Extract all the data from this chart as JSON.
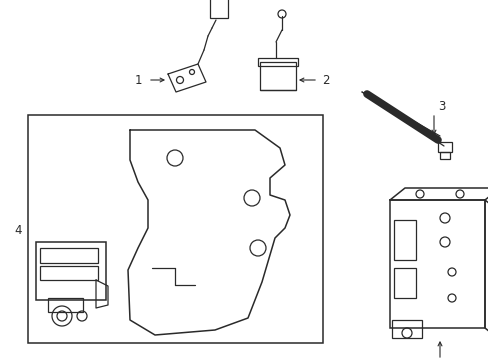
{
  "bg_color": "#ffffff",
  "line_color": "#2a2a2a",
  "lw": 0.9,
  "lw2": 1.1,
  "fig_width": 4.89,
  "fig_height": 3.6,
  "dpi": 100,
  "label_fontsize": 8.5
}
